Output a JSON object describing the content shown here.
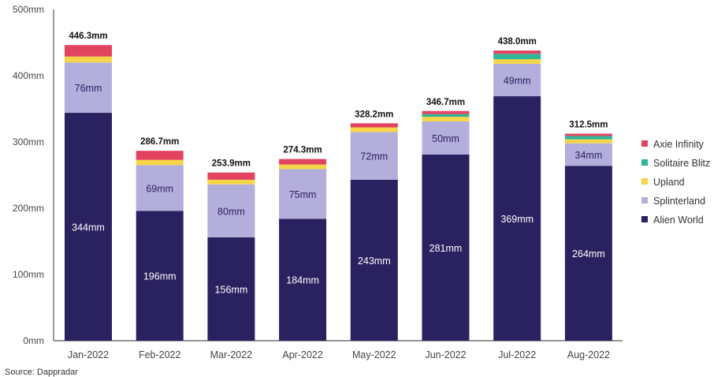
{
  "chart_data": {
    "type": "bar",
    "stacked": true,
    "title": "",
    "xlabel": "",
    "ylabel": "",
    "ylim": [
      0,
      500
    ],
    "yticks": [
      "0mm",
      "100mm",
      "200mm",
      "300mm",
      "400mm",
      "500mm"
    ],
    "ytick_values": [
      0,
      100,
      200,
      300,
      400,
      500
    ],
    "legend_position": "right",
    "categories": [
      "Jan-2022",
      "Feb-2022",
      "Mar-2022",
      "Apr-2022",
      "May-2022",
      "Jun-2022",
      "Jul-2022",
      "Aug-2022"
    ],
    "totals": [
      "446.3mm",
      "286.7mm",
      "253.9mm",
      "274.3mm",
      "328.2mm",
      "346.7mm",
      "438.0mm",
      "312.5mm"
    ],
    "series": [
      {
        "name": "Alien World",
        "color": "#2a2160",
        "label_color": "#ffffff",
        "values": [
          344,
          196,
          156,
          184,
          243,
          281,
          369,
          264
        ],
        "labels": [
          "344mm",
          "196mm",
          "156mm",
          "184mm",
          "243mm",
          "281mm",
          "369mm",
          "264mm"
        ]
      },
      {
        "name": "Splinterland",
        "color": "#b3aedb",
        "label_color": "#2a2160",
        "values": [
          76,
          69,
          80,
          75,
          72,
          50,
          49,
          34
        ],
        "labels": [
          "76mm",
          "69mm",
          "80mm",
          "75mm",
          "72mm",
          "50mm",
          "49mm",
          "34mm"
        ]
      },
      {
        "name": "Upland",
        "color": "#f5d64a",
        "values": [
          9,
          8,
          7,
          7,
          7,
          7,
          7,
          6
        ]
      },
      {
        "name": "Solitaire Blitz",
        "color": "#2fb59a",
        "values": [
          0,
          0,
          0,
          0,
          0,
          4,
          8,
          5
        ]
      },
      {
        "name": "Axie Infinity",
        "color": "#e2445f",
        "values": [
          17.3,
          13.7,
          10.9,
          8.3,
          6.2,
          4.7,
          5,
          3.5
        ]
      }
    ]
  },
  "source": "Source: Dappradar"
}
